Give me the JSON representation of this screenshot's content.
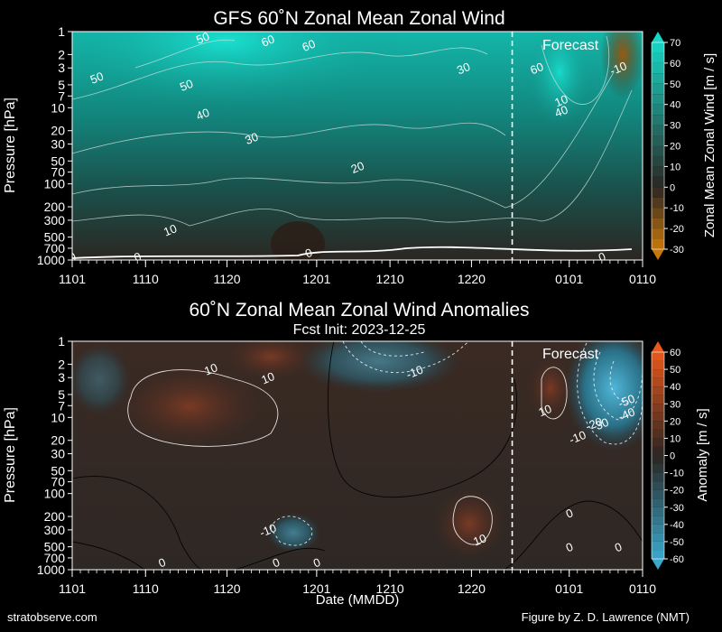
{
  "chart_data": [
    {
      "type": "heatmap",
      "title": "GFS 60˚N Zonal Mean Zonal Wind",
      "subtitle": "",
      "xlabel": "",
      "ylabel": "Pressure [hPa]",
      "y_scale": "log",
      "y_inverted": true,
      "ylim": [
        1000,
        1
      ],
      "x_ticks": [
        "1101",
        "1110",
        "1120",
        "1201",
        "1210",
        "1220",
        "0101",
        "0110"
      ],
      "y_ticks": [
        1,
        2,
        3,
        5,
        7,
        10,
        20,
        30,
        50,
        70,
        100,
        200,
        300,
        500,
        700,
        1000
      ],
      "forecast_label": "Forecast",
      "forecast_start": "1225",
      "colorbar": {
        "label": "Zonal Mean Zonal Wind [m / s]",
        "ticks": [
          70,
          60,
          50,
          40,
          30,
          20,
          10,
          0,
          -10,
          -20,
          -30
        ],
        "range": [
          -30,
          70
        ],
        "colors": {
          "negative": "#c8780a",
          "zero": "#2b2622",
          "positive": "#17d6c6"
        }
      },
      "contour_labels": [
        {
          "text": "60",
          "date": "1125",
          "p": 1.3
        },
        {
          "text": "60",
          "date": "1130",
          "p": 1.5
        },
        {
          "text": "50",
          "date": "1117",
          "p": 1.2
        },
        {
          "text": "50",
          "date": "1104",
          "p": 4
        },
        {
          "text": "50",
          "date": "1115",
          "p": 5
        },
        {
          "text": "40",
          "date": "1117",
          "p": 12
        },
        {
          "text": "30",
          "date": "1123",
          "p": 25
        },
        {
          "text": "20",
          "date": "1206",
          "p": 60
        },
        {
          "text": "10",
          "date": "1113",
          "p": 400
        },
        {
          "text": "0",
          "date": "1101",
          "p": 900
        },
        {
          "text": "0",
          "date": "1109",
          "p": 900
        },
        {
          "text": "0",
          "date": "1130",
          "p": 800
        },
        {
          "text": "30",
          "date": "1219",
          "p": 3
        },
        {
          "text": "60",
          "date": "1228",
          "p": 3
        },
        {
          "text": "10",
          "date": "1231",
          "p": 8
        },
        {
          "text": "40",
          "date": "1231",
          "p": 11
        },
        {
          "text": "-10",
          "date": "0107",
          "p": 3
        },
        {
          "text": "0",
          "date": "0105",
          "p": 900
        }
      ]
    },
    {
      "type": "heatmap",
      "title": "60˚N Zonal Mean Zonal Wind Anomalies",
      "subtitle": "Fcst Init: 2023-12-25",
      "xlabel": "Date (MMDD)",
      "ylabel": "Pressure [hPa]",
      "y_scale": "log",
      "y_inverted": true,
      "ylim": [
        1000,
        1
      ],
      "x_ticks": [
        "1101",
        "1110",
        "1120",
        "1201",
        "1210",
        "1220",
        "0101",
        "0110"
      ],
      "y_ticks": [
        1,
        2,
        3,
        5,
        7,
        10,
        20,
        30,
        50,
        70,
        100,
        200,
        300,
        500,
        700,
        1000
      ],
      "forecast_label": "Forecast",
      "forecast_start": "1225",
      "colorbar": {
        "label": "Anomaly [m / s]",
        "ticks": [
          60,
          50,
          40,
          30,
          20,
          10,
          0,
          -10,
          -20,
          -30,
          -40,
          -50,
          -60
        ],
        "range": [
          -60,
          60
        ],
        "colors": {
          "negative": "#3aa8cc",
          "zero": "#2a2521",
          "positive": "#e9581c"
        }
      },
      "contour_labels": [
        {
          "text": "10",
          "date": "1118",
          "p": 2.3
        },
        {
          "text": "10",
          "date": "1125",
          "p": 3
        },
        {
          "text": "-10",
          "date": "1213",
          "p": 2.5
        },
        {
          "text": "10",
          "date": "1229",
          "p": 8
        },
        {
          "text": "-50",
          "date": "0108",
          "p": 6
        },
        {
          "text": "-40",
          "date": "0108",
          "p": 9
        },
        {
          "text": "-20",
          "date": "0104",
          "p": 12
        },
        {
          "text": "30",
          "date": "0105",
          "p": 12
        },
        {
          "text": "-10",
          "date": "0102",
          "p": 18
        },
        {
          "text": "0",
          "date": "0101",
          "p": 180
        },
        {
          "text": "-10",
          "date": "1125",
          "p": 300
        },
        {
          "text": "10",
          "date": "1221",
          "p": 400
        },
        {
          "text": "0",
          "date": "1112",
          "p": 800
        },
        {
          "text": "0",
          "date": "1126",
          "p": 800
        },
        {
          "text": "0",
          "date": "1201",
          "p": 800
        },
        {
          "text": "0",
          "date": "0101",
          "p": 500
        },
        {
          "text": "0",
          "date": "0107",
          "p": 500
        }
      ]
    }
  ],
  "footer": {
    "left": "stratobserve.com",
    "right": "Figure by Z. D. Lawrence (NMT)"
  }
}
